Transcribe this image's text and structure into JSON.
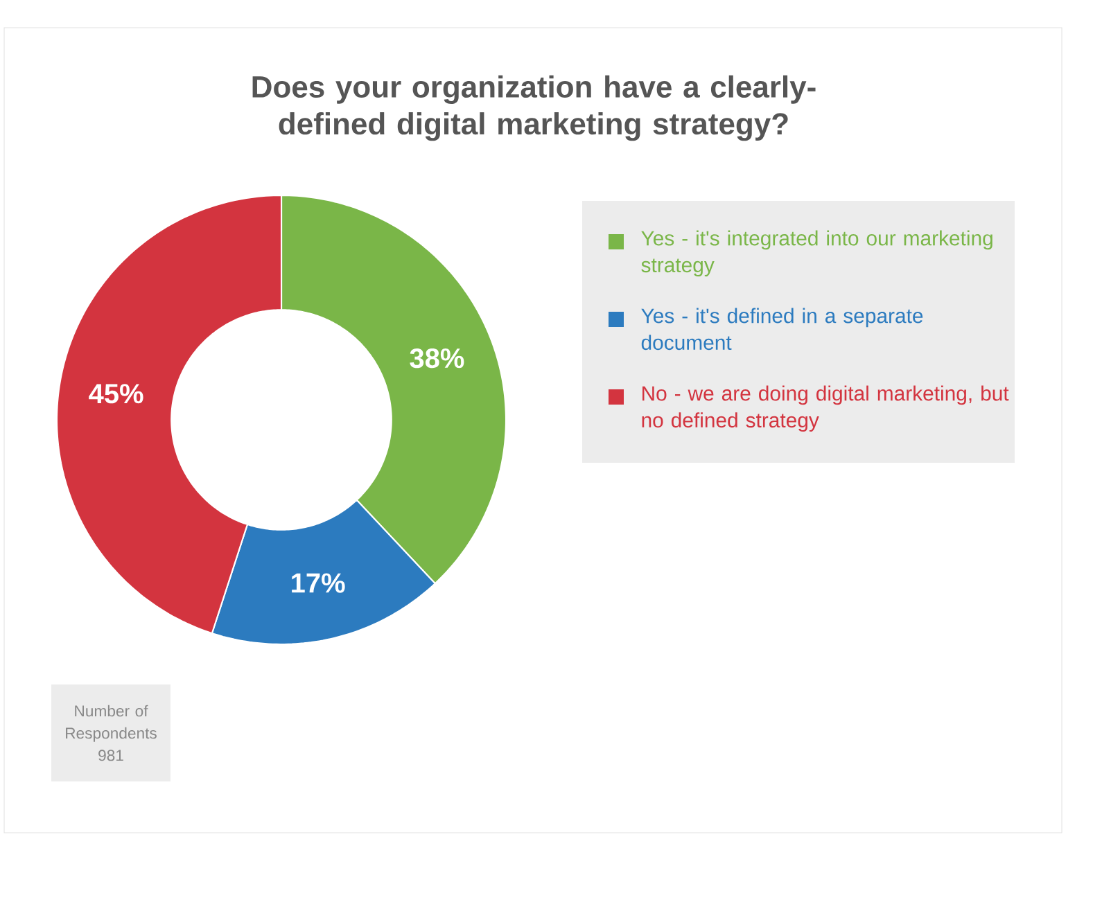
{
  "chart_data": {
    "type": "donut",
    "title": "Does your organization have a clearly-defined digital marketing strategy?",
    "categories": [
      "Yes - it's integrated into our marketing strategy",
      "Yes - it's defined in a separate document",
      "No - we are doing digital marketing, but no defined strategy"
    ],
    "values": [
      38,
      17,
      45
    ],
    "colors": [
      "#7ab648",
      "#2c7bbf",
      "#d3343f"
    ],
    "value_labels": [
      "38%",
      "17%",
      "45%"
    ],
    "legend": "right",
    "annotations": [
      "Number of Respondents 981"
    ]
  }
}
